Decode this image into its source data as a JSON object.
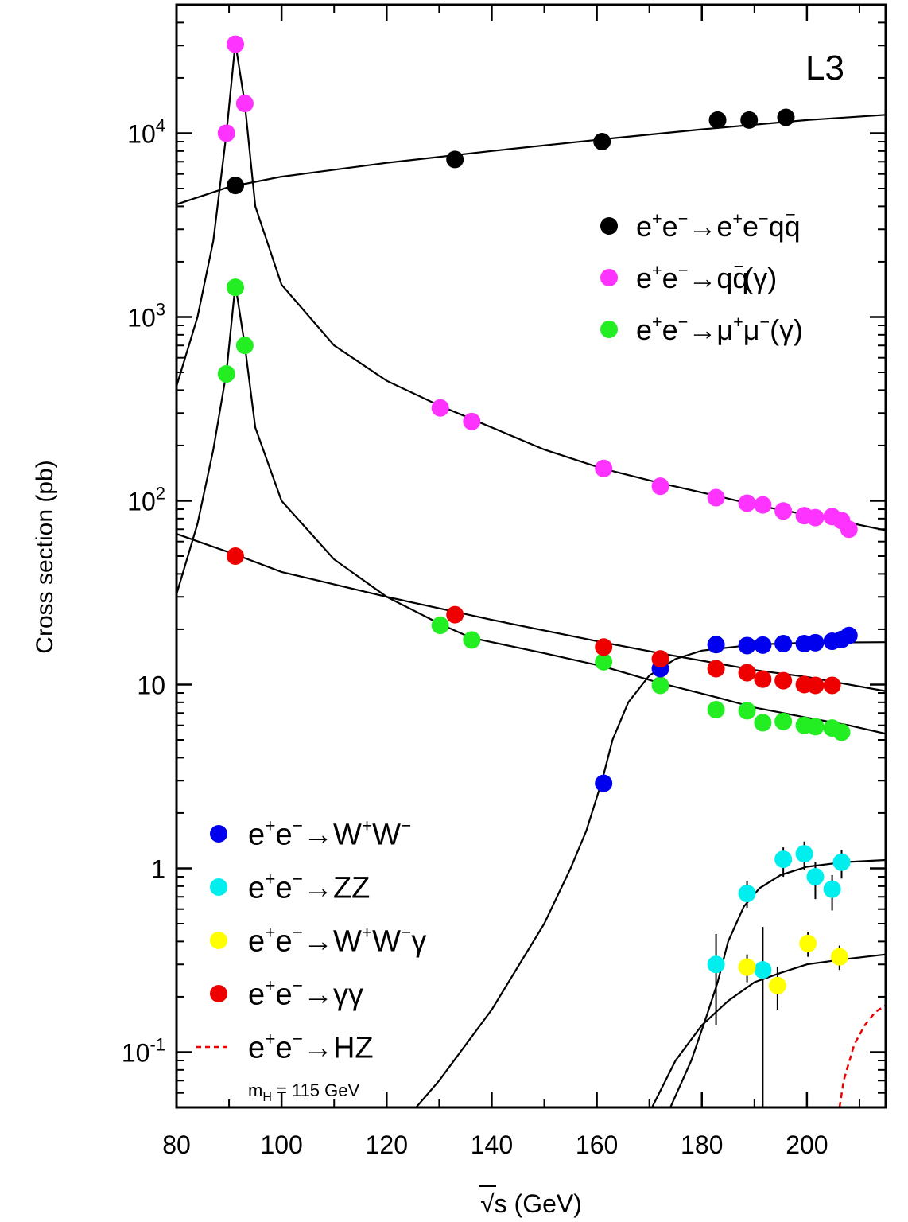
{
  "chart_data": {
    "type": "scatter",
    "experiment_label": "L3",
    "xlabel": "√s (GeV)",
    "ylabel": "Cross section (pb)",
    "xlim": [
      80,
      215
    ],
    "ylim": [
      0.05,
      50000
    ],
    "yscale": "log",
    "grid": false,
    "legend_upper_position": "top-right",
    "legend_lower_position": "bottom-left",
    "x_ticks": [
      80,
      100,
      120,
      140,
      160,
      180,
      200
    ],
    "y_ticks": [
      {
        "value": 0.1,
        "base": "10",
        "exp": "-1"
      },
      {
        "value": 1,
        "base": "1",
        "exp": ""
      },
      {
        "value": 10,
        "base": "10",
        "exp": ""
      },
      {
        "value": 100,
        "base": "10",
        "exp": "2"
      },
      {
        "value": 1000,
        "base": "10",
        "exp": "3"
      },
      {
        "value": 10000,
        "base": "10",
        "exp": "4"
      }
    ],
    "series": [
      {
        "name": "e+e−→e+e−qq̄",
        "color": "#000000",
        "legend": "upper",
        "points": [
          [
            91.2,
            5200
          ],
          [
            133,
            7200
          ],
          [
            161,
            9000
          ],
          [
            183,
            11800
          ],
          [
            189,
            11800
          ],
          [
            196,
            12200
          ]
        ]
      },
      {
        "name": "e+e−→qq̄(γ)",
        "color": "#ff33ff",
        "legend": "upper",
        "points": [
          [
            89.5,
            10000
          ],
          [
            91.2,
            30500
          ],
          [
            93,
            14500
          ],
          [
            130.2,
            320
          ],
          [
            136.2,
            270
          ],
          [
            161.3,
            150
          ],
          [
            172.1,
            120
          ],
          [
            182.7,
            104
          ],
          [
            188.6,
            97
          ],
          [
            191.6,
            95
          ],
          [
            195.5,
            88
          ],
          [
            199.5,
            83
          ],
          [
            201.6,
            81
          ],
          [
            204.8,
            82
          ],
          [
            206.6,
            78
          ],
          [
            208,
            70
          ]
        ]
      },
      {
        "name": "e+e−→μ+μ−(γ)",
        "color": "#22ee22",
        "legend": "upper",
        "points": [
          [
            89.5,
            490
          ],
          [
            91.2,
            1450
          ],
          [
            93,
            700
          ],
          [
            130.2,
            21
          ],
          [
            136.2,
            17.5
          ],
          [
            161.3,
            13.3
          ],
          [
            172.1,
            9.9
          ],
          [
            182.7,
            7.3
          ],
          [
            188.6,
            7.2
          ],
          [
            191.6,
            6.2
          ],
          [
            195.5,
            6.3
          ],
          [
            199.5,
            6.0
          ],
          [
            201.6,
            5.9
          ],
          [
            204.8,
            5.8
          ],
          [
            206.6,
            5.5
          ]
        ]
      },
      {
        "name": "e+e−→W+W−",
        "color": "#0000ee",
        "legend": "lower",
        "points": [
          [
            161.3,
            2.9
          ],
          [
            172.1,
            12.2
          ],
          [
            182.7,
            16.5
          ],
          [
            188.6,
            16.3
          ],
          [
            191.6,
            16.4
          ],
          [
            195.5,
            16.7
          ],
          [
            199.5,
            16.7
          ],
          [
            201.6,
            16.9
          ],
          [
            204.8,
            17.2
          ],
          [
            206.6,
            17.6
          ],
          [
            208,
            18.5
          ]
        ]
      },
      {
        "name": "e+e−→ZZ",
        "color": "#00eeee",
        "legend": "lower",
        "points": [
          [
            182.7,
            0.3
          ],
          [
            188.6,
            0.73
          ],
          [
            191.6,
            0.28
          ],
          [
            195.5,
            1.12
          ],
          [
            199.5,
            1.2
          ],
          [
            201.6,
            0.9
          ],
          [
            204.8,
            0.77
          ],
          [
            206.6,
            1.08
          ]
        ],
        "errors": [
          [
            0.16,
            0.14
          ],
          [
            0.12,
            0.12
          ],
          [
            0.25,
            0.2
          ],
          [
            0.22,
            0.18
          ],
          [
            0.22,
            0.2
          ],
          [
            0.22,
            0.18
          ],
          [
            0.18,
            0.15
          ],
          [
            0.2,
            0.18
          ]
        ]
      },
      {
        "name": "e+e−→W+W−γ",
        "color": "#ffff00",
        "legend": "lower",
        "points": [
          [
            188.6,
            0.29
          ],
          [
            194.4,
            0.23
          ],
          [
            200.2,
            0.39
          ],
          [
            206.2,
            0.33
          ]
        ],
        "errors": [
          [
            0.05,
            0.05
          ],
          [
            0.06,
            0.06
          ],
          [
            0.06,
            0.06
          ],
          [
            0.05,
            0.05
          ]
        ]
      },
      {
        "name": "e+e−→γγ",
        "color": "#ee0000",
        "legend": "lower",
        "points": [
          [
            91.2,
            50
          ],
          [
            133,
            24
          ],
          [
            161.3,
            16
          ],
          [
            172.1,
            13.8
          ],
          [
            182.7,
            12.2
          ],
          [
            188.6,
            11.6
          ],
          [
            191.6,
            10.7
          ],
          [
            195.5,
            10.5
          ],
          [
            199.5,
            10
          ],
          [
            201.6,
            9.9
          ],
          [
            204.8,
            9.9
          ]
        ]
      },
      {
        "name": "e+e−→HZ",
        "color": "#ee0000",
        "legend": "lower",
        "style": "dashed-curve",
        "points": []
      }
    ],
    "curves": [
      {
        "for": "e+e−→e+e−qq̄",
        "style": "solid",
        "points": [
          [
            80,
            4100
          ],
          [
            90,
            5100
          ],
          [
            100,
            5800
          ],
          [
            120,
            6900
          ],
          [
            140,
            8000
          ],
          [
            160,
            9200
          ],
          [
            180,
            10500
          ],
          [
            200,
            11800
          ],
          [
            215,
            12600
          ]
        ]
      },
      {
        "for": "e+e−→qq̄(γ)",
        "style": "solid",
        "points": [
          [
            80,
            420
          ],
          [
            84,
            1000
          ],
          [
            87,
            2600
          ],
          [
            89.5,
            10000
          ],
          [
            91.2,
            31000
          ],
          [
            93,
            14500
          ],
          [
            95,
            4000
          ],
          [
            100,
            1500
          ],
          [
            110,
            700
          ],
          [
            120,
            450
          ],
          [
            130,
            330
          ],
          [
            136,
            280
          ],
          [
            150,
            190
          ],
          [
            161,
            150
          ],
          [
            172,
            125
          ],
          [
            183,
            106
          ],
          [
            190,
            95
          ],
          [
            200,
            84
          ],
          [
            208,
            76
          ],
          [
            215,
            69
          ]
        ]
      },
      {
        "for": "e+e−→μ+μ−(γ)",
        "style": "solid",
        "points": [
          [
            80,
            31
          ],
          [
            84,
            75
          ],
          [
            87,
            190
          ],
          [
            89.5,
            500
          ],
          [
            91.2,
            1500
          ],
          [
            93,
            700
          ],
          [
            95,
            250
          ],
          [
            100,
            100
          ],
          [
            110,
            48
          ],
          [
            120,
            30
          ],
          [
            130,
            21.5
          ],
          [
            136,
            18
          ],
          [
            150,
            14.8
          ],
          [
            161,
            12.6
          ],
          [
            172,
            10.2
          ],
          [
            183,
            8.5
          ],
          [
            190,
            7.5
          ],
          [
            200,
            6.6
          ],
          [
            208,
            6.0
          ],
          [
            215,
            5.4
          ]
        ]
      },
      {
        "for": "e+e−→γγ",
        "style": "solid",
        "points": [
          [
            80,
            66
          ],
          [
            91.2,
            51
          ],
          [
            100,
            41
          ],
          [
            120,
            30
          ],
          [
            140,
            22.5
          ],
          [
            161,
            17
          ],
          [
            172,
            14.8
          ],
          [
            190,
            12
          ],
          [
            200,
            11
          ],
          [
            215,
            9.2
          ]
        ]
      },
      {
        "for": "e+e−→W+W−",
        "style": "solid",
        "points": [
          [
            125.6,
            0.05
          ],
          [
            130,
            0.07
          ],
          [
            140,
            0.17
          ],
          [
            150,
            0.5
          ],
          [
            155,
            1.0
          ],
          [
            158,
            1.6
          ],
          [
            161,
            3.0
          ],
          [
            163,
            5.0
          ],
          [
            166,
            8.0
          ],
          [
            170,
            11.2
          ],
          [
            175,
            13.8
          ],
          [
            180,
            15.3
          ],
          [
            190,
            16.5
          ],
          [
            200,
            16.9
          ],
          [
            215,
            17.0
          ]
        ]
      },
      {
        "for": "e+e−→ZZ",
        "style": "solid",
        "points": [
          [
            174,
            0.05
          ],
          [
            178,
            0.09
          ],
          [
            181,
            0.16
          ],
          [
            183,
            0.24
          ],
          [
            185,
            0.4
          ],
          [
            188,
            0.62
          ],
          [
            191,
            0.78
          ],
          [
            195,
            0.92
          ],
          [
            200,
            1.02
          ],
          [
            207,
            1.08
          ],
          [
            215,
            1.11
          ]
        ]
      },
      {
        "for": "e+e−→W+W−γ",
        "style": "solid",
        "points": [
          [
            170.5,
            0.05
          ],
          [
            175,
            0.09
          ],
          [
            180,
            0.14
          ],
          [
            185,
            0.19
          ],
          [
            190,
            0.24
          ],
          [
            195,
            0.27
          ],
          [
            200,
            0.3
          ],
          [
            207,
            0.32
          ],
          [
            215,
            0.34
          ]
        ]
      },
      {
        "for": "e+e−→HZ",
        "style": "dashed",
        "color": "#ee0000",
        "points": [
          [
            206.2,
            0.05
          ],
          [
            207,
            0.07
          ],
          [
            209,
            0.11
          ],
          [
            211,
            0.14
          ],
          [
            213,
            0.165
          ],
          [
            215,
            0.18
          ]
        ]
      }
    ],
    "legend_upper": [
      {
        "marker_color": "#000000",
        "parts": [
          [
            "e",
            ""
          ],
          [
            "+",
            "sup"
          ],
          [
            "e",
            ""
          ],
          [
            "−",
            "sup"
          ],
          [
            "→e",
            ""
          ],
          [
            "+",
            "sup"
          ],
          [
            "e",
            ""
          ],
          [
            "−",
            "sup"
          ],
          [
            "qq",
            ""
          ],
          [
            "−",
            "bar"
          ]
        ]
      },
      {
        "marker_color": "#ff33ff",
        "parts": [
          [
            "e",
            ""
          ],
          [
            "+",
            "sup"
          ],
          [
            "e",
            ""
          ],
          [
            "−",
            "sup"
          ],
          [
            "→qq",
            ""
          ],
          [
            "−",
            "bar"
          ],
          [
            "(γ)",
            ""
          ]
        ]
      },
      {
        "marker_color": "#22ee22",
        "parts": [
          [
            "e",
            ""
          ],
          [
            "+",
            "sup"
          ],
          [
            "e",
            ""
          ],
          [
            "−",
            "sup"
          ],
          [
            "→μ",
            ""
          ],
          [
            "+",
            "sup"
          ],
          [
            "μ",
            ""
          ],
          [
            "−",
            "sup"
          ],
          [
            "(γ)",
            ""
          ]
        ]
      }
    ],
    "legend_lower": [
      {
        "marker_color": "#0000ee",
        "marker": "dot",
        "parts": [
          [
            "e",
            ""
          ],
          [
            "+",
            "sup"
          ],
          [
            "e",
            ""
          ],
          [
            "−",
            "sup"
          ],
          [
            "→W",
            ""
          ],
          [
            "+",
            "sup"
          ],
          [
            "W",
            ""
          ],
          [
            "−",
            "sup"
          ]
        ]
      },
      {
        "marker_color": "#00eeee",
        "marker": "dot",
        "parts": [
          [
            "e",
            ""
          ],
          [
            "+",
            "sup"
          ],
          [
            "e",
            ""
          ],
          [
            "−",
            "sup"
          ],
          [
            "→ZZ",
            ""
          ]
        ]
      },
      {
        "marker_color": "#ffff00",
        "marker": "dot",
        "parts": [
          [
            "e",
            ""
          ],
          [
            "+",
            "sup"
          ],
          [
            "e",
            ""
          ],
          [
            "−",
            "sup"
          ],
          [
            "→W",
            ""
          ],
          [
            "+",
            "sup"
          ],
          [
            "W",
            ""
          ],
          [
            "−",
            "sup"
          ],
          [
            "γ",
            ""
          ]
        ]
      },
      {
        "marker_color": "#ee0000",
        "marker": "dot",
        "parts": [
          [
            "e",
            ""
          ],
          [
            "+",
            "sup"
          ],
          [
            "e",
            ""
          ],
          [
            "−",
            "sup"
          ],
          [
            "→γγ",
            ""
          ]
        ]
      },
      {
        "marker_color": "#ee0000",
        "marker": "dash",
        "parts": [
          [
            "e",
            ""
          ],
          [
            "+",
            "sup"
          ],
          [
            "e",
            ""
          ],
          [
            "−",
            "sup"
          ],
          [
            "→HZ",
            ""
          ]
        ]
      }
    ],
    "hz_note": {
      "main": "m",
      "sub": "H",
      "rest": " = 115 GeV"
    }
  }
}
